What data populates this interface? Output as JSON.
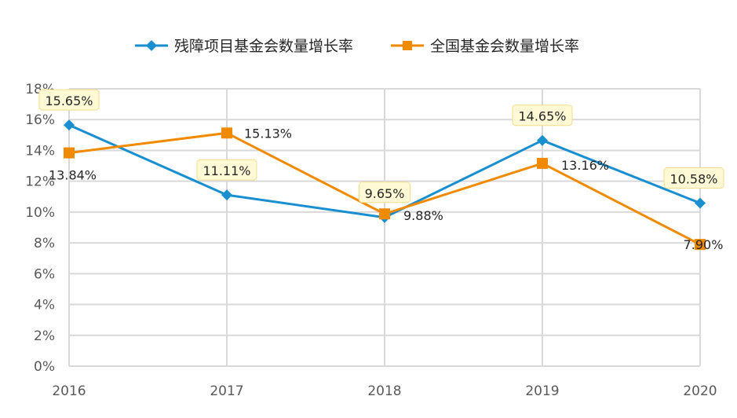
{
  "chart_data": {
    "type": "line",
    "categories": [
      "2016",
      "2017",
      "2018",
      "2019",
      "2020"
    ],
    "series": [
      {
        "name": "残障项目基金会数量增长率",
        "color": "#1a8fd0",
        "marker": "diamond",
        "values": [
          15.65,
          11.11,
          9.65,
          14.65,
          10.58
        ],
        "labels": [
          "15.65%",
          "11.11%",
          "9.65%",
          "14.65%",
          "10.58%"
        ]
      },
      {
        "name": "全国基金会数量增长率",
        "color": "#f08a00",
        "marker": "square",
        "values": [
          13.84,
          15.13,
          9.88,
          13.16,
          7.9
        ],
        "labels": [
          "13.84%",
          "15.13%",
          "9.88%",
          "13.16%",
          "7.90%"
        ]
      }
    ],
    "yticks": [
      "0%",
      "2%",
      "4%",
      "6%",
      "8%",
      "10%",
      "12%",
      "14%",
      "16%",
      "18%"
    ],
    "ylim": [
      0,
      18
    ],
    "grid": true,
    "legend_position": "top",
    "label_box_color": "#fff9d6",
    "label_box_border": "#f3dd8a"
  }
}
